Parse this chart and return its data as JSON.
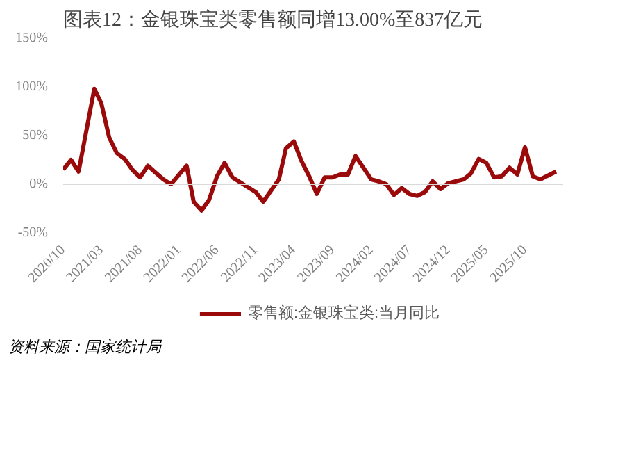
{
  "chart_data": {
    "type": "line",
    "title": "图表12：金银珠宝类零售额同增13.00%至837亿元",
    "annotations": [
      "资料来源：国家统计局"
    ],
    "x": [
      "2020-10",
      "2020-11",
      "2020-12",
      "2021-02",
      "2021-03",
      "2021-04",
      "2021-05",
      "2021-06",
      "2021-07",
      "2021-08",
      "2021-09",
      "2021-10",
      "2021-11",
      "2021-12",
      "2022-02",
      "2022-03",
      "2022-04",
      "2022-05",
      "2022-06",
      "2022-07",
      "2022-08",
      "2022-09",
      "2022-10",
      "2022-11",
      "2022-12",
      "2023-02",
      "2023-03",
      "2023-04",
      "2023-05",
      "2023-06",
      "2023-07",
      "2023-08",
      "2023-09",
      "2023-10",
      "2023-11",
      "2023-12",
      "2024-02",
      "2024-03",
      "2024-04",
      "2024-05",
      "2024-06",
      "2024-07",
      "2024-08",
      "2024-09",
      "2024-10",
      "2024-11",
      "2024-12",
      "2025-02",
      "2025-03",
      "2025-04",
      "2025-05",
      "2025-06",
      "2025-07",
      "2025-08",
      "2025-09",
      "2025-10",
      "2025-11",
      "2025-12",
      "2026-02"
    ],
    "series": [
      {
        "name": "零售额:金银珠宝类:当月同比",
        "color": "#9b0a0a",
        "values": [
          15,
          25,
          13,
          98,
          83,
          48,
          32,
          26,
          15,
          7,
          19,
          12,
          5,
          0,
          19,
          -18,
          -27,
          -16,
          8,
          22,
          7,
          2,
          -3,
          -8,
          -18,
          5,
          37,
          44,
          24,
          8,
          -10,
          7,
          7,
          10,
          10,
          29,
          5,
          3,
          0,
          -11,
          -4,
          -10,
          -12,
          -8,
          3,
          -5,
          1,
          5,
          11,
          26,
          22,
          7,
          8,
          17,
          10,
          38,
          8,
          5,
          13
        ]
      }
    ],
    "xlim": [
      "2020-10",
      "2026-03"
    ],
    "xticks": [
      {
        "value": "2020-10",
        "label": "2020/10"
      },
      {
        "value": "2021-03",
        "label": "2021/03"
      },
      {
        "value": "2021-08",
        "label": "2021/08"
      },
      {
        "value": "2022-01",
        "label": "2022/01"
      },
      {
        "value": "2022-06",
        "label": "2022/06"
      },
      {
        "value": "2022-11",
        "label": "2022/11"
      },
      {
        "value": "2023-04",
        "label": "2023/04"
      },
      {
        "value": "2023-09",
        "label": "2023/09"
      },
      {
        "value": "2024-02",
        "label": "2024/02"
      },
      {
        "value": "2024-07",
        "label": "2024/07"
      },
      {
        "value": "2024-12",
        "label": "2024/12"
      },
      {
        "value": "2025-05",
        "label": "2025/05"
      },
      {
        "value": "2025-10",
        "label": "2025/10"
      }
    ],
    "ylim": [
      -50,
      150
    ],
    "yticks": [
      {
        "value": -50,
        "label": "-50%"
      },
      {
        "value": 0,
        "label": "0%"
      },
      {
        "value": 50,
        "label": "50%"
      },
      {
        "value": 100,
        "label": "100%"
      },
      {
        "value": 150,
        "label": "150%"
      }
    ],
    "ref_lines": [
      {
        "axis": "y",
        "value": 0,
        "color": "#d9d9d9"
      }
    ],
    "grid": false,
    "legend": "bottom",
    "marker": "none",
    "line_style": "solid"
  }
}
